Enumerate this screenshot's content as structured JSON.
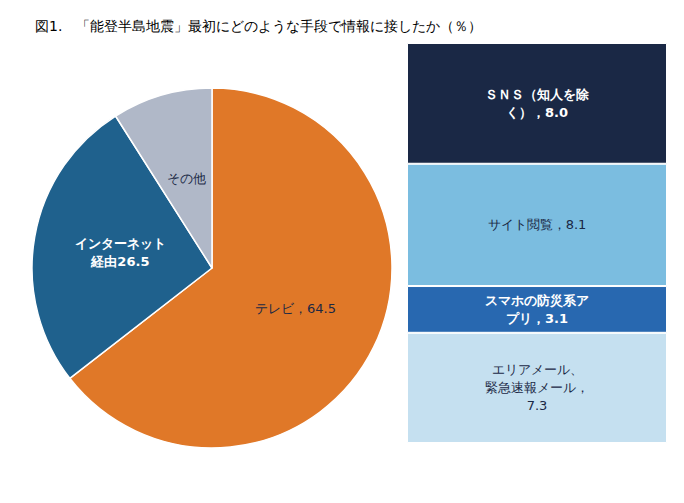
{
  "chart_data": [
    {
      "type": "pie",
      "title": "図1.　「能登半島地震」最初にどのような手段で情報に接したか（％）",
      "categories": [
        "テレビ，64.5",
        "インターネット\n経由26.5",
        "その他"
      ],
      "values": [
        64.5,
        26.5,
        9.0
      ],
      "colors": [
        "#E07828",
        "#1F618D",
        "#B0B8C8"
      ],
      "legend": false
    },
    {
      "type": "bar",
      "stacked": true,
      "categories": [
        null
      ],
      "series": [
        {
          "color": "#1A2845",
          "values": [
            8.0
          ],
          "value_labels": [
            "ＳＮＳ（知人を除\nく），8.0"
          ]
        },
        {
          "color": "#7BBDE0",
          "values": [
            8.1
          ],
          "value_labels": [
            "サイト閲覧，8.1"
          ]
        },
        {
          "color": "#2868B0",
          "values": [
            3.1
          ],
          "value_labels": [
            "スマホの防災系ア\nプリ，3.1"
          ]
        },
        {
          "color": "#C5E0F0",
          "values": [
            7.3
          ],
          "value_labels": [
            "エリアメール、\n緊急速報メール，\n7.3"
          ]
        }
      ],
      "ylim": [
        0,
        26.5
      ],
      "yticks": [
        0,
        26.5
      ],
      "tick_labels": false,
      "grid": false,
      "legend": false,
      "data_labels": true
    }
  ]
}
